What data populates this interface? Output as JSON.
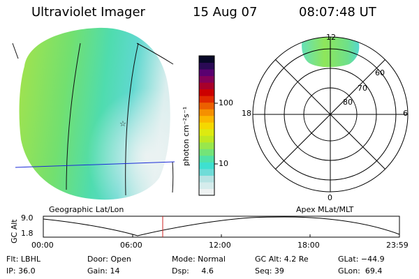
{
  "header": {
    "instrument": "Ultraviolet Imager",
    "date": "15 Aug 07",
    "time": "08:07:48 UT"
  },
  "colorbar": {
    "unit_label": "photon cm⁻²s⁻¹",
    "ticks": [
      "100",
      "10"
    ],
    "colors": [
      "#eef2f2",
      "#d5ecec",
      "#b7e3e3",
      "#6fdcd8",
      "#3ee0d0",
      "#50e2a8",
      "#74e478",
      "#99e74c",
      "#bfe822",
      "#ddea10",
      "#f5d800",
      "#fbb800",
      "#f59000",
      "#ec6000",
      "#e02a00",
      "#cc0000",
      "#a8002a",
      "#840058",
      "#5a0070",
      "#2a0a55",
      "#080828"
    ]
  },
  "left_panel": {
    "label": "Geographic Lat/Lon",
    "star_marker": "☆"
  },
  "right_panel": {
    "label": "Apex MLat/MLT",
    "mlt_labels": {
      "top": "12",
      "left": "18",
      "right": "6",
      "bottom": "0"
    },
    "lat_labels": [
      "60",
      "70",
      "80"
    ]
  },
  "altitude_plot": {
    "ylabel": "GC Alt",
    "yticks": [
      "9.0",
      "1.8"
    ],
    "xticks": [
      "00:00",
      "06:00",
      "12:00",
      "18:00",
      "23:59"
    ],
    "marker_color": "#cc2222"
  },
  "info": {
    "filter": "Flt: LBHL",
    "ip": "IP: 36.0",
    "door": "Door: Open",
    "gain": "Gain: 14",
    "mode": "Mode: Normal",
    "dsp": "Dsp:     4.6",
    "gc_alt": "GC Alt: 4.2 Re",
    "seq": "Seq: 39",
    "glat": "GLat: −44.9",
    "glon": "GLon:  69.4"
  }
}
